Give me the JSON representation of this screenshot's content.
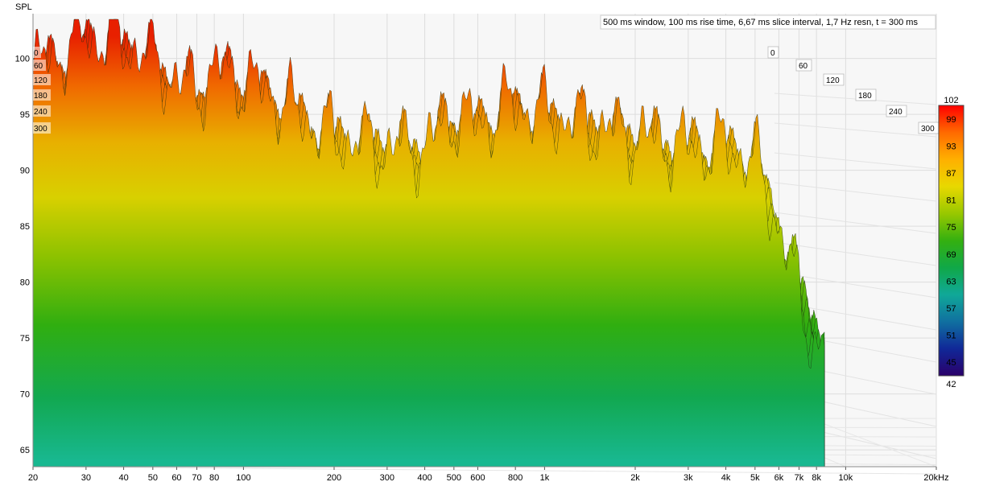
{
  "chart_data": {
    "type": "waterfall-3d",
    "ylabel": "SPL",
    "xlabel": "",
    "title": "500 ms window, 100 ms rise time, 6,67 ms slice interval, 1,7 Hz resn, t = 300 ms",
    "xscale": "log",
    "xlim": [
      20,
      20000
    ],
    "ylim": [
      63.5,
      104
    ],
    "x_ticks": [
      20,
      30,
      40,
      50,
      60,
      70,
      80,
      100,
      200,
      300,
      400,
      500,
      600,
      800,
      1000,
      2000,
      3000,
      4000,
      5000,
      6000,
      7000,
      8000,
      10000,
      20000
    ],
    "x_tick_labels": [
      "20",
      "30",
      "40",
      "50",
      "60",
      "70",
      "80",
      "100",
      "200",
      "300",
      "400",
      "500",
      "600",
      "800",
      "1k",
      "2k",
      "3k",
      "4k",
      "5k",
      "6k",
      "7k",
      "8k",
      "10k",
      "20kHz"
    ],
    "y_ticks": [
      65,
      70,
      75,
      80,
      85,
      90,
      95,
      100
    ],
    "y_tick_labels": [
      "65",
      "70",
      "75",
      "80",
      "85",
      "90",
      "95",
      "100"
    ],
    "time_ticks": [
      "0",
      "60",
      "120",
      "180",
      "240",
      "300"
    ],
    "time_unit": "ms",
    "colorbar": {
      "min": 42,
      "max": 102,
      "tick_labels": [
        "102",
        "99",
        "93",
        "87",
        "81",
        "75",
        "69",
        "63",
        "57",
        "51",
        "45",
        "42"
      ],
      "colors": [
        "#ff0000",
        "#ff6a00",
        "#ffb000",
        "#e8d800",
        "#98c800",
        "#34b010",
        "#10a848",
        "#10a898",
        "#1070a0",
        "#102898",
        "#2a006a"
      ]
    },
    "series_profile": {
      "x": [
        20,
        30,
        40,
        50,
        60,
        70,
        80,
        100,
        120,
        200,
        300,
        400,
        500,
        600,
        800,
        1000,
        2000,
        3000,
        4000,
        5000,
        6000,
        7000,
        8000
      ],
      "peak_front_slice": [
        99,
        102,
        101.5,
        100,
        98,
        97,
        99,
        98,
        97,
        93,
        92,
        92,
        95,
        94,
        96,
        95,
        93,
        92,
        92,
        91,
        85,
        79,
        74
      ],
      "floor_back_slice": [
        65,
        66,
        66,
        66,
        66,
        67,
        67,
        68,
        68,
        68,
        68,
        68,
        68,
        68,
        68,
        68,
        68,
        68,
        68,
        68,
        68,
        69,
        69
      ]
    }
  }
}
